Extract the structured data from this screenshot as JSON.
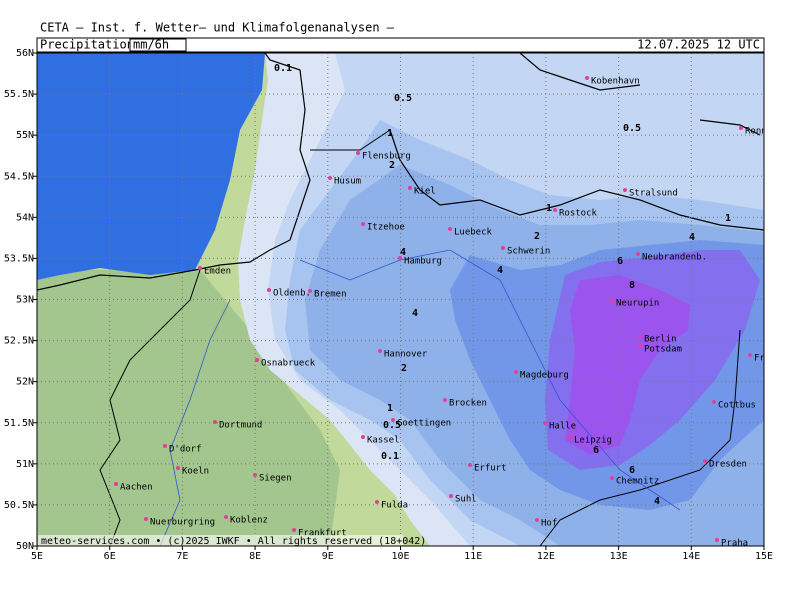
{
  "header": {
    "title": "CETA – Inst. f. Wetter– und Klimafolgenanalysen –",
    "field": "Precipitation",
    "unit": "mm/6h",
    "valid": "12.07.2025 12 UTC"
  },
  "footer": "meteo-services.com • (c)2025 IWKF • All rights reserved (18+042)",
  "axes": {
    "xlim": [
      5,
      15
    ],
    "ylim": [
      50,
      56
    ],
    "xticks": [
      {
        "value": 5,
        "label": "5E"
      },
      {
        "value": 6,
        "label": "6E"
      },
      {
        "value": 7,
        "label": "7E"
      },
      {
        "value": 8,
        "label": "8E"
      },
      {
        "value": 9,
        "label": "9E"
      },
      {
        "value": 10,
        "label": "10E"
      },
      {
        "value": 11,
        "label": "11E"
      },
      {
        "value": 12,
        "label": "12E"
      },
      {
        "value": 13,
        "label": "13E"
      },
      {
        "value": 14,
        "label": "14E"
      },
      {
        "value": 15,
        "label": "15E"
      }
    ],
    "yticks": [
      {
        "value": 50,
        "label": "50N"
      },
      {
        "value": 50.5,
        "label": "50.5N"
      },
      {
        "value": 51,
        "label": "51N"
      },
      {
        "value": 51.5,
        "label": "51.5N"
      },
      {
        "value": 52,
        "label": "52N"
      },
      {
        "value": 52.5,
        "label": "52.5N"
      },
      {
        "value": 53,
        "label": "53N"
      },
      {
        "value": 53.5,
        "label": "53.5N"
      },
      {
        "value": 54,
        "label": "54N"
      },
      {
        "value": 54.5,
        "label": "54.5N"
      },
      {
        "value": 55,
        "label": "55N"
      },
      {
        "value": 55.5,
        "label": "55.5N"
      },
      {
        "value": 56,
        "label": "56N"
      }
    ]
  },
  "cities": [
    "Kobenhavn",
    "Ronne",
    "Flensburg",
    "Husum",
    "Kiel",
    "Rostock",
    "Stralsund",
    "Itzehoe",
    "Luebeck",
    "Schwerin",
    "Neubrandenb.",
    "Emden",
    "Hamburg",
    "Oldenb.",
    "Bremen",
    "Neurupin",
    "Berlin",
    "Potsdam",
    "Frankfurt/O",
    "Osnabrueck",
    "Hannover",
    "Magdeburg",
    "Brocken",
    "Dortmund",
    "Goettingen",
    "Kassel",
    "Halle",
    "Leipzig",
    "Cottbus",
    "D'dorf",
    "Koeln",
    "Erfurt",
    "Dresden",
    "Aachen",
    "Siegen",
    "Chemnitz",
    "Suhl",
    "Fulda",
    "Nuerburgring",
    "Koblenz",
    "Frankfurt",
    "Hof",
    "Praha"
  ],
  "contour_labels": [
    "0.1",
    "0.5",
    "0.5",
    "1",
    "2",
    "1",
    "2",
    "1",
    "4",
    "6",
    "8",
    "4",
    "4",
    "4",
    "2",
    "1",
    "0.5",
    "0.1",
    "6",
    "6",
    "4"
  ]
}
